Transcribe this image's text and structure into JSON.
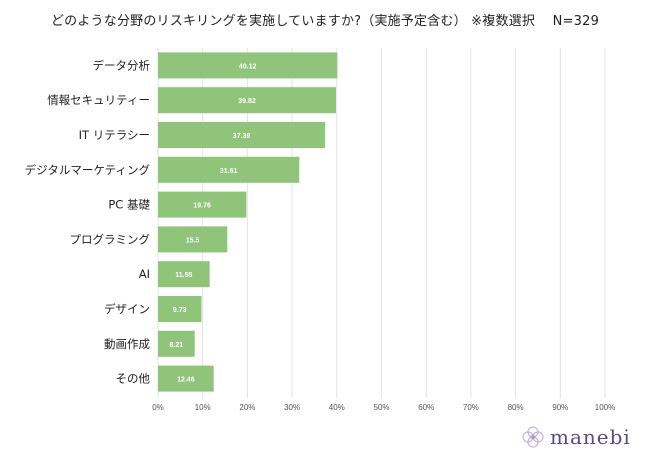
{
  "title": "どのような分野のリスキリングを実施していますか?（実施予定含む） ※複数選択　 N=329",
  "chart_data": {
    "type": "bar",
    "orientation": "horizontal",
    "categories": [
      "データ分析",
      "情報セキュリティー",
      "IT リテラシー",
      "デジタルマーケティング",
      "PC 基礎",
      "プログラミング",
      "AI",
      "デザイン",
      "動画作成",
      "その他"
    ],
    "values": [
      40.12,
      39.82,
      37.39,
      31.61,
      19.76,
      15.5,
      11.55,
      9.73,
      8.21,
      12.46
    ],
    "value_labels": [
      "40.12",
      "39.82",
      "37.39",
      "31.61",
      "19.76",
      "15.5",
      "11.55",
      "9.73",
      "8.21",
      "12.46"
    ],
    "xlim": [
      0,
      100
    ],
    "x_ticks": [
      0,
      10,
      20,
      30,
      40,
      50,
      60,
      70,
      80,
      90,
      100
    ],
    "x_tick_labels": [
      "0%",
      "10%",
      "20%",
      "30%",
      "40%",
      "50%",
      "60%",
      "70%",
      "80%",
      "90%",
      "100%"
    ],
    "grid": true,
    "bar_color": "#8fc47a",
    "grid_color": "#e3e3e3"
  },
  "logo": {
    "text": "manebi",
    "color": "#5a4a86"
  }
}
